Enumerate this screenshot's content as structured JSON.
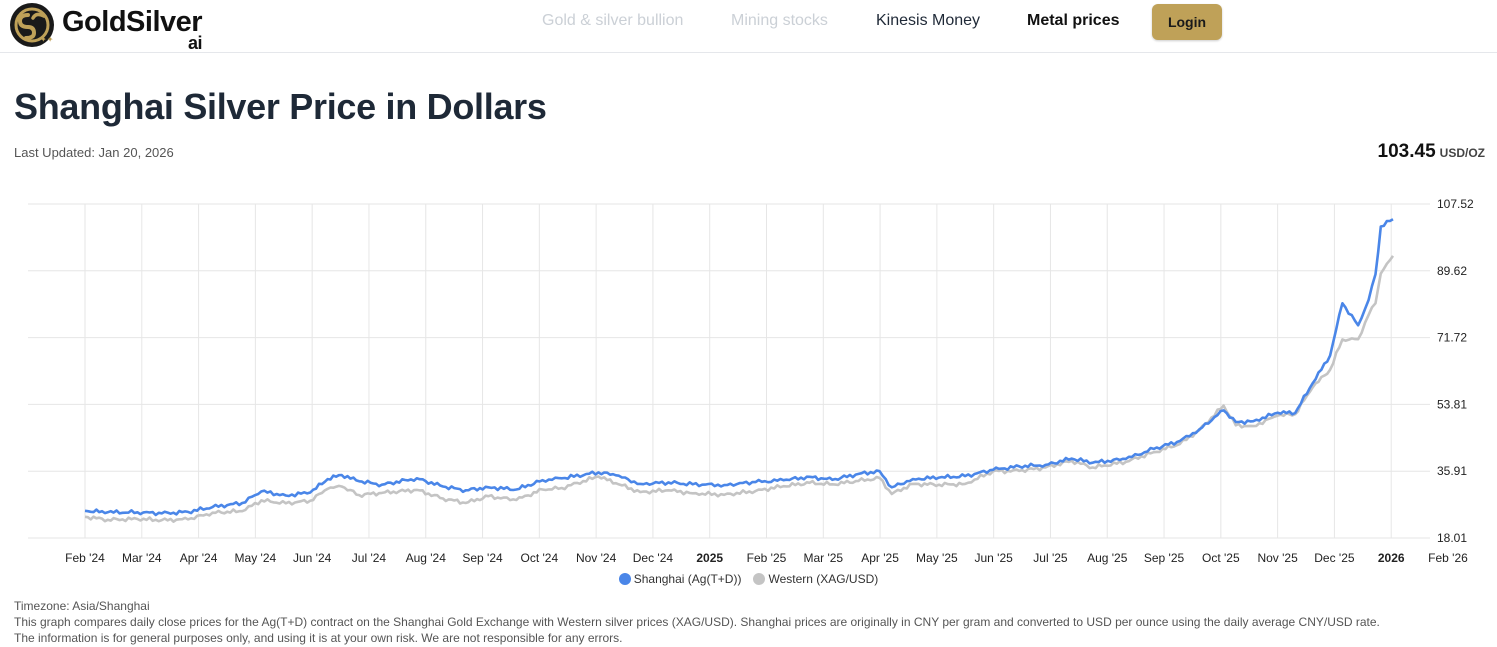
{
  "header": {
    "logo_text": "GoldSilver",
    "logo_suffix": "ai",
    "nav": [
      {
        "label": "Gold & silver bullion",
        "state": "muted"
      },
      {
        "label": "Mining stocks",
        "state": "muted"
      },
      {
        "label": "Kinesis Money",
        "state": "normal"
      },
      {
        "label": "Metal prices",
        "state": "active"
      }
    ],
    "login_label": "Login",
    "accent_color": "#bfa158"
  },
  "page": {
    "title": "Shanghai Silver Price in Dollars",
    "last_updated": "Last Updated: Jan 20, 2026",
    "price": "103.45",
    "price_unit": "USD/OZ"
  },
  "chart_data": {
    "type": "line",
    "ylim": [
      18.01,
      107.52
    ],
    "y_ticks": [
      "107.52",
      "89.62",
      "71.72",
      "53.81",
      "35.91",
      "18.01"
    ],
    "x_ticks": [
      "Feb '24",
      "Mar '24",
      "Apr '24",
      "May '24",
      "Jun '24",
      "Jul '24",
      "Aug '24",
      "Sep '24",
      "Oct '24",
      "Nov '24",
      "Dec '24",
      "2025",
      "Feb '25",
      "Mar '25",
      "Apr '25",
      "May '25",
      "Jun '25",
      "Jul '25",
      "Aug '25",
      "Sep '25",
      "Oct '25",
      "Nov '25",
      "Dec '25",
      "2026",
      "Feb '26"
    ],
    "xlim": [
      "2024-01-02",
      "2026-01-20"
    ],
    "grid": true,
    "legend_position": "bottom-center",
    "series": [
      {
        "name": "Shanghai (Ag(T+D))",
        "color": "#4a86e8",
        "points": [
          [
            "2024-01-02",
            25.3
          ],
          [
            "2024-01-15",
            24.9
          ],
          [
            "2024-02-01",
            24.9
          ],
          [
            "2024-02-15",
            24.6
          ],
          [
            "2024-03-01",
            25.0
          ],
          [
            "2024-03-15",
            26.3
          ],
          [
            "2024-04-01",
            27.4
          ],
          [
            "2024-04-12",
            30.5
          ],
          [
            "2024-04-26",
            29.4
          ],
          [
            "2024-05-10",
            30.2
          ],
          [
            "2024-05-20",
            33.8
          ],
          [
            "2024-05-28",
            34.9
          ],
          [
            "2024-06-07",
            33.2
          ],
          [
            "2024-06-20",
            32.3
          ],
          [
            "2024-07-10",
            34.0
          ],
          [
            "2024-07-25",
            31.8
          ],
          [
            "2024-08-07",
            30.8
          ],
          [
            "2024-08-20",
            31.6
          ],
          [
            "2024-09-05",
            31.0
          ],
          [
            "2024-09-20",
            33.5
          ],
          [
            "2024-10-01",
            34.0
          ],
          [
            "2024-10-22",
            35.6
          ],
          [
            "2024-11-01",
            34.8
          ],
          [
            "2024-11-15",
            32.5
          ],
          [
            "2024-12-01",
            32.9
          ],
          [
            "2024-12-15",
            32.4
          ],
          [
            "2025-01-02",
            32.2
          ],
          [
            "2025-01-20",
            33.0
          ],
          [
            "2025-02-05",
            33.5
          ],
          [
            "2025-02-20",
            34.4
          ],
          [
            "2025-03-05",
            33.6
          ],
          [
            "2025-03-20",
            35.2
          ],
          [
            "2025-04-01",
            35.9
          ],
          [
            "2025-04-08",
            31.6
          ],
          [
            "2025-04-20",
            33.8
          ],
          [
            "2025-05-05",
            34.2
          ],
          [
            "2025-05-20",
            34.6
          ],
          [
            "2025-06-05",
            36.3
          ],
          [
            "2025-06-20",
            37.2
          ],
          [
            "2025-07-05",
            37.6
          ],
          [
            "2025-07-20",
            39.3
          ],
          [
            "2025-08-01",
            38.2
          ],
          [
            "2025-08-20",
            39.2
          ],
          [
            "2025-09-05",
            41.9
          ],
          [
            "2025-09-20",
            44.0
          ],
          [
            "2025-10-01",
            47.1
          ],
          [
            "2025-10-15",
            52.2
          ],
          [
            "2025-10-22",
            49.1
          ],
          [
            "2025-11-01",
            49.3
          ],
          [
            "2025-11-15",
            51.6
          ],
          [
            "2025-11-25",
            51.5
          ],
          [
            "2025-12-05",
            59.5
          ],
          [
            "2025-12-15",
            66.9
          ],
          [
            "2025-12-22",
            80.9
          ],
          [
            "2025-12-31",
            75.0
          ],
          [
            "2026-01-06",
            81.8
          ],
          [
            "2026-01-10",
            88.7
          ],
          [
            "2026-01-13",
            101.5
          ],
          [
            "2026-01-20",
            103.45
          ]
        ]
      },
      {
        "name": "Western (XAG/USD)",
        "color": "#c4c4c4",
        "points": [
          [
            "2024-01-02",
            23.7
          ],
          [
            "2024-01-15",
            22.9
          ],
          [
            "2024-02-01",
            23.1
          ],
          [
            "2024-02-15",
            22.8
          ],
          [
            "2024-03-01",
            23.0
          ],
          [
            "2024-03-15",
            24.8
          ],
          [
            "2024-04-01",
            25.2
          ],
          [
            "2024-04-12",
            28.1
          ],
          [
            "2024-04-26",
            27.3
          ],
          [
            "2024-05-10",
            28.0
          ],
          [
            "2024-05-20",
            31.2
          ],
          [
            "2024-05-28",
            31.8
          ],
          [
            "2024-06-07",
            29.5
          ],
          [
            "2024-06-20",
            30.1
          ],
          [
            "2024-07-10",
            30.9
          ],
          [
            "2024-07-25",
            28.6
          ],
          [
            "2024-08-07",
            27.4
          ],
          [
            "2024-08-20",
            29.2
          ],
          [
            "2024-09-05",
            28.2
          ],
          [
            "2024-09-20",
            31.0
          ],
          [
            "2024-10-01",
            31.4
          ],
          [
            "2024-10-22",
            34.5
          ],
          [
            "2024-11-01",
            32.7
          ],
          [
            "2024-11-15",
            30.3
          ],
          [
            "2024-12-01",
            30.8
          ],
          [
            "2024-12-15",
            30.0
          ],
          [
            "2025-01-02",
            29.6
          ],
          [
            "2025-01-20",
            30.6
          ],
          [
            "2025-02-05",
            31.9
          ],
          [
            "2025-02-20",
            32.8
          ],
          [
            "2025-03-05",
            32.4
          ],
          [
            "2025-03-20",
            33.3
          ],
          [
            "2025-04-01",
            34.1
          ],
          [
            "2025-04-08",
            29.8
          ],
          [
            "2025-04-20",
            32.5
          ],
          [
            "2025-05-05",
            32.3
          ],
          [
            "2025-05-20",
            32.5
          ],
          [
            "2025-06-05",
            35.9
          ],
          [
            "2025-06-20",
            36.0
          ],
          [
            "2025-07-05",
            36.9
          ],
          [
            "2025-07-20",
            38.7
          ],
          [
            "2025-08-01",
            36.9
          ],
          [
            "2025-08-20",
            38.4
          ],
          [
            "2025-09-05",
            41.0
          ],
          [
            "2025-09-20",
            43.2
          ],
          [
            "2025-10-01",
            46.9
          ],
          [
            "2025-10-15",
            53.5
          ],
          [
            "2025-10-22",
            48.2
          ],
          [
            "2025-11-01",
            48.0
          ],
          [
            "2025-11-15",
            50.8
          ],
          [
            "2025-11-25",
            51.2
          ],
          [
            "2025-12-05",
            58.4
          ],
          [
            "2025-12-15",
            63.1
          ],
          [
            "2025-12-22",
            71.2
          ],
          [
            "2025-12-31",
            71.3
          ],
          [
            "2026-01-06",
            77.8
          ],
          [
            "2026-01-10",
            80.9
          ],
          [
            "2026-01-13",
            88.9
          ],
          [
            "2026-01-20",
            93.6
          ]
        ]
      }
    ]
  },
  "footer": {
    "timezone": "Timezone: Asia/Shanghai",
    "line1": "This graph compares daily close prices for the Ag(T+D) contract on the Shanghai Gold Exchange with Western silver prices (XAG/USD). Shanghai prices are originally in CNY per gram and converted to USD per ounce using the daily average CNY/USD rate.",
    "line2": "The information is for general purposes only, and using it is at your own risk. We are not responsible for any errors."
  }
}
